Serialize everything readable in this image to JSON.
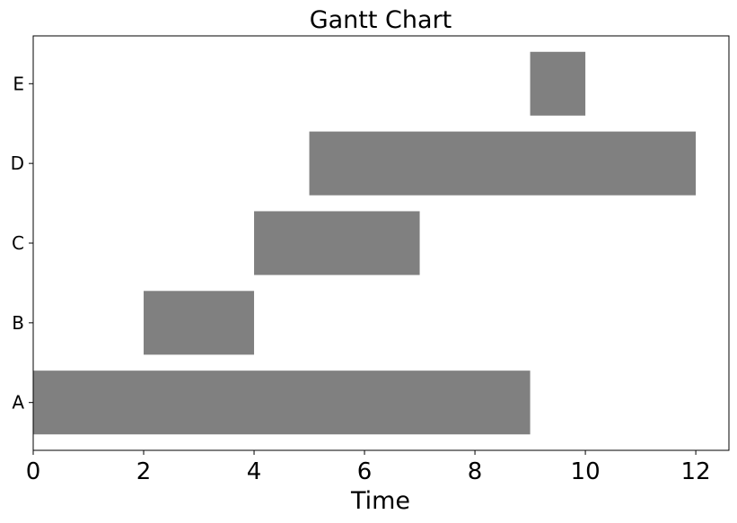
{
  "chart_data": {
    "type": "bar",
    "orientation": "horizontal",
    "title": "Gantt Chart",
    "xlabel": "Time",
    "ylabel": "",
    "xlim": [
      0,
      12.6
    ],
    "xticks": [
      0,
      2,
      4,
      6,
      8,
      10,
      12
    ],
    "grid": false,
    "bar_color": "#808080",
    "tasks": [
      {
        "name": "A",
        "start": 0,
        "end": 9
      },
      {
        "name": "B",
        "start": 2,
        "end": 4
      },
      {
        "name": "C",
        "start": 4,
        "end": 7
      },
      {
        "name": "D",
        "start": 5,
        "end": 12
      },
      {
        "name": "E",
        "start": 9,
        "end": 10
      }
    ]
  }
}
